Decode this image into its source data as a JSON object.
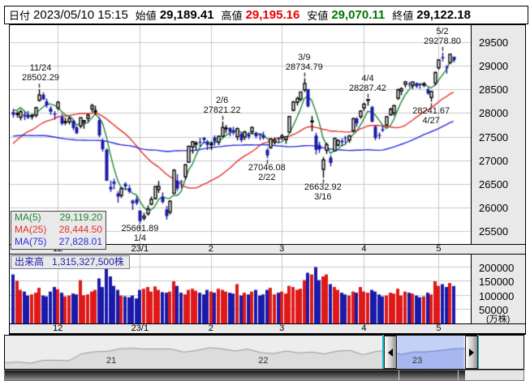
{
  "header": {
    "date_label": "日付",
    "date_value": "2023/05/10 15:15",
    "open_label": "始値",
    "open_value": "29,189.41",
    "high_label": "高値",
    "high_value": "29,195.16",
    "low_label": "安値",
    "low_value": "29,070.11",
    "close_label": "終値",
    "close_value": "29,122.18"
  },
  "legend": {
    "ma5_label": "MA(5)",
    "ma5_value": "29,119.20",
    "ma25_label": "MA(25)",
    "ma25_value": "28,444.50",
    "ma75_label": "MA(75)",
    "ma75_value": "27,828.01"
  },
  "volume_header": {
    "label": "出来高",
    "value": "1,315,327,500株"
  },
  "colors": {
    "up_candle": "#ffffff",
    "down_candle": "#1a1aaa",
    "candle_outline": "#000000",
    "volume_up": "#e01818",
    "volume_down": "#1a1aaa",
    "ma5": "#1f8a35",
    "ma25": "#e62e2e",
    "ma75": "#2a2ae0",
    "grid": "#c9c9c9",
    "high_text": "#e60000",
    "low_text": "#007700",
    "nav_selection_bg": "#c3d1f6",
    "nav_selection_fill": "#a6b8ef",
    "nav_selection_line": "#6d7fc4",
    "nav_fill": "#dcdcdc",
    "nav_line": "#999999"
  },
  "chart_data": {
    "type": "candlestick",
    "period": "2022/11/14 - 2023/05/10 (daily)",
    "price_axis": {
      "ticks": [
        29500,
        29000,
        28500,
        28000,
        27500,
        27000,
        26500,
        26000,
        25500
      ],
      "value_top": 29858,
      "value_bottom": 25233
    },
    "volume_axis": {
      "ticks": [
        200000,
        150000,
        100000,
        50000
      ],
      "unit_label": "(万株)",
      "value_top": 242000
    },
    "x_ticks": {
      "labels": [
        "12",
        "23/1",
        "2",
        "3",
        "4",
        "5"
      ],
      "indices": [
        12,
        34,
        53,
        72,
        94,
        114
      ]
    },
    "annotations": [
      {
        "date": "11/24",
        "value": "28502.29",
        "index": 7,
        "price": 28502.29,
        "side": "above"
      },
      {
        "date": "1/4",
        "value": "25661.89",
        "index": 34,
        "price": 25661.89,
        "side": "below"
      },
      {
        "date": "2/6",
        "value": "27821.22",
        "index": 56,
        "price": 27821.22,
        "side": "above"
      },
      {
        "date": "2/22",
        "value": "27046.08",
        "index": 68,
        "price": 27046.08,
        "side": "below"
      },
      {
        "date": "3/9",
        "value": "28734.79",
        "index": 78,
        "price": 28734.79,
        "side": "above"
      },
      {
        "date": "3/16",
        "value": "26632.92",
        "index": 83,
        "price": 26632.92,
        "side": "below"
      },
      {
        "date": "4/4",
        "value": "28287.42",
        "index": 95,
        "price": 28287.42,
        "side": "above"
      },
      {
        "date": "4/27",
        "value": "28241.67",
        "index": 112,
        "price": 28241.67,
        "side": "below"
      },
      {
        "date": "5/2",
        "value": "29278.80",
        "index": 115,
        "price": 29278.8,
        "side": "above"
      }
    ],
    "ma_periods": [
      5,
      25,
      75
    ],
    "pre_closes": [
      27595,
      27641,
      27741,
      27932,
      28175,
      28249,
      28116,
      28372,
      28546,
      28942,
      28930,
      29222,
      28868,
      28794,
      28452,
      28313,
      28195,
      28028,
      27878,
      28162,
      28195,
      28091,
      27619,
      27430,
      27626,
      27818,
      28065,
      27860,
      27430,
      27313,
      26878,
      27091,
      27568,
      27688,
      27153,
      26790,
      26432,
      26572,
      27154,
      26938,
      26422,
      26174,
      25937,
      26216,
      26397,
      26993,
      27106,
      27311,
      26943,
      26401,
      26167,
      26398,
      26237,
      26643,
      27090,
      27006,
      26890,
      27105,
      27251,
      27482,
      27345,
      27105,
      27587,
      27678,
      27663,
      27199,
      27246,
      27527,
      27872,
      27963,
      28072,
      27716,
      28263,
      28333
    ],
    "candles": [
      [
        28020,
        28090,
        27903,
        27963,
        172000
      ],
      [
        27985,
        28038,
        27903,
        27990,
        150000
      ],
      [
        27910,
        28069,
        27845,
        28028,
        118000
      ],
      [
        27966,
        28029,
        27851,
        27930,
        112000
      ],
      [
        27958,
        28045,
        27877,
        27899,
        98000
      ],
      [
        27937,
        27980,
        27862,
        27944,
        102000
      ],
      [
        27953,
        28132,
        27907,
        28115,
        108000
      ],
      [
        28269,
        28502.29,
        28242,
        28383,
        125000
      ],
      [
        28387,
        28438,
        28281,
        28283,
        98000
      ],
      [
        28248,
        28305,
        28111,
        28162,
        95000
      ],
      [
        28099,
        28147,
        27963,
        28027,
        112000
      ],
      [
        27990,
        28040,
        27862,
        27968,
        128000
      ],
      [
        28109,
        28257,
        28053,
        28226,
        120000
      ],
      [
        27912,
        27987,
        27739,
        27777,
        108000
      ],
      [
        27800,
        27899,
        27744,
        27820,
        95000
      ],
      [
        27813,
        27925,
        27760,
        27886,
        98000
      ],
      [
        27839,
        27855,
        27639,
        27686,
        105000
      ],
      [
        27698,
        27727,
        27556,
        27574,
        102000
      ],
      [
        27727,
        27901,
        27677,
        27901,
        152000
      ],
      [
        27812,
        27854,
        27668,
        27842,
        99000
      ],
      [
        27889,
        27989,
        27815,
        27954,
        102000
      ],
      [
        28086,
        28195,
        28016,
        28156,
        112000
      ],
      [
        28027,
        28156,
        27964,
        28051,
        118000
      ],
      [
        27850,
        27911,
        27488,
        27527,
        158000
      ],
      [
        27411,
        27462,
        27186,
        27237,
        128000
      ],
      [
        27226,
        27253,
        26568,
        26568,
        196000
      ],
      [
        26441,
        26573,
        26335,
        26387,
        165000
      ],
      [
        26550,
        26612,
        26387,
        26507,
        132000
      ],
      [
        26299,
        26350,
        26106,
        26235,
        118000
      ],
      [
        26258,
        26438,
        26205,
        26405,
        98000
      ],
      [
        26506,
        26541,
        26368,
        26448,
        95000
      ],
      [
        26415,
        26479,
        26301,
        26340,
        92000
      ],
      [
        26151,
        26172,
        25953,
        26093,
        98000
      ],
      [
        26180,
        26246,
        26056,
        26095,
        88000
      ],
      [
        25935,
        25953,
        25661.89,
        25717,
        118000
      ],
      [
        25780,
        25894,
        25729,
        25821,
        122000
      ],
      [
        25874,
        26049,
        25833,
        25974,
        128000
      ],
      [
        26076,
        26236,
        26051,
        26176,
        112000
      ],
      [
        26194,
        26456,
        26172,
        26446,
        130000
      ],
      [
        26385,
        26566,
        26313,
        26449,
        118000
      ],
      [
        26231,
        26324,
        26090,
        26119,
        110000
      ],
      [
        25963,
        26033,
        25748,
        25822,
        108000
      ],
      [
        25907,
        26157,
        25855,
        26138,
        112000
      ],
      [
        26304,
        26816,
        26290,
        26791,
        148000
      ],
      [
        26571,
        26708,
        26355,
        26405,
        132000
      ],
      [
        26559,
        26585,
        26412,
        26553,
        108000
      ],
      [
        26656,
        26926,
        26597,
        26906,
        102000
      ],
      [
        26963,
        27306,
        26947,
        27299,
        118000
      ],
      [
        27284,
        27412,
        27141,
        27395,
        122000
      ],
      [
        27354,
        27409,
        27210,
        27362,
        115000
      ],
      [
        27392,
        27477,
        27283,
        27382,
        108000
      ],
      [
        27477,
        27493,
        27359,
        27433,
        102000
      ],
      [
        27398,
        27430,
        27221,
        27327,
        118000
      ],
      [
        27346,
        27402,
        27219,
        27346,
        112000
      ],
      [
        27486,
        27529,
        27316,
        27402,
        108000
      ],
      [
        27383,
        27527,
        27323,
        27509,
        122000
      ],
      [
        27509,
        27821.22,
        27486,
        27693,
        118000
      ],
      [
        27685,
        27748,
        27576,
        27685,
        112000
      ],
      [
        27686,
        27699,
        27512,
        27606,
        108000
      ],
      [
        27634,
        27710,
        27536,
        27584,
        105000
      ],
      [
        27502,
        27698,
        27424,
        27670,
        138000
      ],
      [
        27562,
        27591,
        27383,
        27427,
        98000
      ],
      [
        27492,
        27626,
        27431,
        27602,
        108000
      ],
      [
        27547,
        27599,
        27449,
        27501,
        102000
      ],
      [
        27606,
        27711,
        27545,
        27696,
        112000
      ],
      [
        27582,
        27608,
        27466,
        27513,
        118000
      ],
      [
        27544,
        27562,
        27426,
        27531,
        98000
      ],
      [
        27534,
        27608,
        27441,
        27473,
        102000
      ],
      [
        27222,
        27260,
        27046.08,
        27104,
        118000
      ],
      [
        27272,
        27471,
        27242,
        27453,
        125000
      ],
      [
        27380,
        27480,
        27336,
        27423,
        102000
      ],
      [
        27469,
        27482,
        27362,
        27445,
        108000
      ],
      [
        27482,
        27559,
        27426,
        27516,
        112000
      ],
      [
        27439,
        27511,
        27349,
        27498,
        105000
      ],
      [
        27596,
        27930,
        27596,
        27927,
        132000
      ],
      [
        28059,
        28253,
        28037,
        28237,
        128000
      ],
      [
        28225,
        28343,
        28156,
        28309,
        118000
      ],
      [
        28296,
        28452,
        28248,
        28444,
        122000
      ],
      [
        28490,
        28734.79,
        28446,
        28623,
        152000
      ],
      [
        28506,
        28508,
        28118,
        28143,
        178000
      ],
      [
        27820,
        27938,
        27616,
        27832,
        172000
      ],
      [
        27525,
        27585,
        27126,
        27222,
        198000
      ],
      [
        27328,
        27392,
        27158,
        27229,
        152000
      ],
      [
        26811,
        27073,
        26632.92,
        27010,
        165000
      ],
      [
        27212,
        27370,
        27134,
        27333,
        172000
      ],
      [
        27060,
        27109,
        26874,
        26945,
        138000
      ],
      [
        27201,
        27477,
        27186,
        27466,
        128000
      ],
      [
        27325,
        27448,
        27289,
        27419,
        118000
      ],
      [
        27415,
        27465,
        27300,
        27385,
        108000
      ],
      [
        27482,
        27520,
        27359,
        27476,
        102000
      ],
      [
        27430,
        27535,
        27370,
        27518,
        98000
      ],
      [
        27625,
        27898,
        27585,
        27883,
        112000
      ],
      [
        27886,
        27910,
        27712,
        27782,
        108000
      ],
      [
        27924,
        28062,
        27880,
        28041,
        128000
      ],
      [
        28107,
        28218,
        28043,
        28188,
        112000
      ],
      [
        28276,
        28287.42,
        28156,
        28287,
        108000
      ],
      [
        28128,
        28154,
        27813,
        27813,
        118000
      ],
      [
        27712,
        27737,
        27427,
        27472,
        112000
      ],
      [
        27540,
        27591,
        27447,
        27518,
        102000
      ],
      [
        27658,
        27737,
        27597,
        27633,
        95000
      ],
      [
        27747,
        27929,
        27720,
        27923,
        98000
      ],
      [
        27965,
        28113,
        27940,
        28082,
        108000
      ],
      [
        28000,
        28172,
        27942,
        28156,
        105000
      ],
      [
        28314,
        28515,
        28275,
        28493,
        122000
      ],
      [
        28467,
        28544,
        28375,
        28514,
        98000
      ],
      [
        28608,
        28680,
        28542,
        28658,
        112000
      ],
      [
        28622,
        28660,
        28547,
        28606,
        108000
      ],
      [
        28587,
        28662,
        28508,
        28657,
        105000
      ],
      [
        28633,
        28647,
        28527,
        28564,
        98000
      ],
      [
        28611,
        28629,
        28510,
        28593,
        92000
      ],
      [
        28589,
        28654,
        28546,
        28620,
        95000
      ],
      [
        28500,
        28540,
        28384,
        28416,
        108000
      ],
      [
        28329,
        28469,
        28241.67,
        28457,
        102000
      ],
      [
        28631,
        28879,
        28581,
        28856,
        148000
      ],
      [
        28958,
        29137,
        28917,
        29123,
        132000
      ],
      [
        29182,
        29278.8,
        29088,
        29157,
        138000
      ],
      [
        28972,
        29013,
        28832,
        28950,
        128000
      ],
      [
        29062,
        29250,
        29043,
        29242,
        142000
      ],
      [
        29189.41,
        29195.16,
        29070.11,
        29122.18,
        131533
      ]
    ],
    "nav": {
      "years": [
        {
          "label": "21",
          "f": 0.205
        },
        {
          "label": "22",
          "f": 0.498
        },
        {
          "label": "23",
          "f": 0.795
        }
      ],
      "selection": [
        0.755,
        0.885
      ],
      "spark_end_f": 0.888,
      "spark_values": [
        21878,
        22288,
        21710,
        23140,
        23185,
        22977,
        26434,
        27444,
        27663,
        28966,
        29179,
        28813,
        28860,
        28792,
        27284,
        28090,
        29453,
        28893,
        27822,
        28792,
        27002,
        26527,
        27821,
        26848,
        27280,
        26393,
        27802,
        28092,
        25937,
        27587,
        27969,
        26095,
        27327,
        27446,
        28041,
        28856,
        29122
      ]
    }
  }
}
